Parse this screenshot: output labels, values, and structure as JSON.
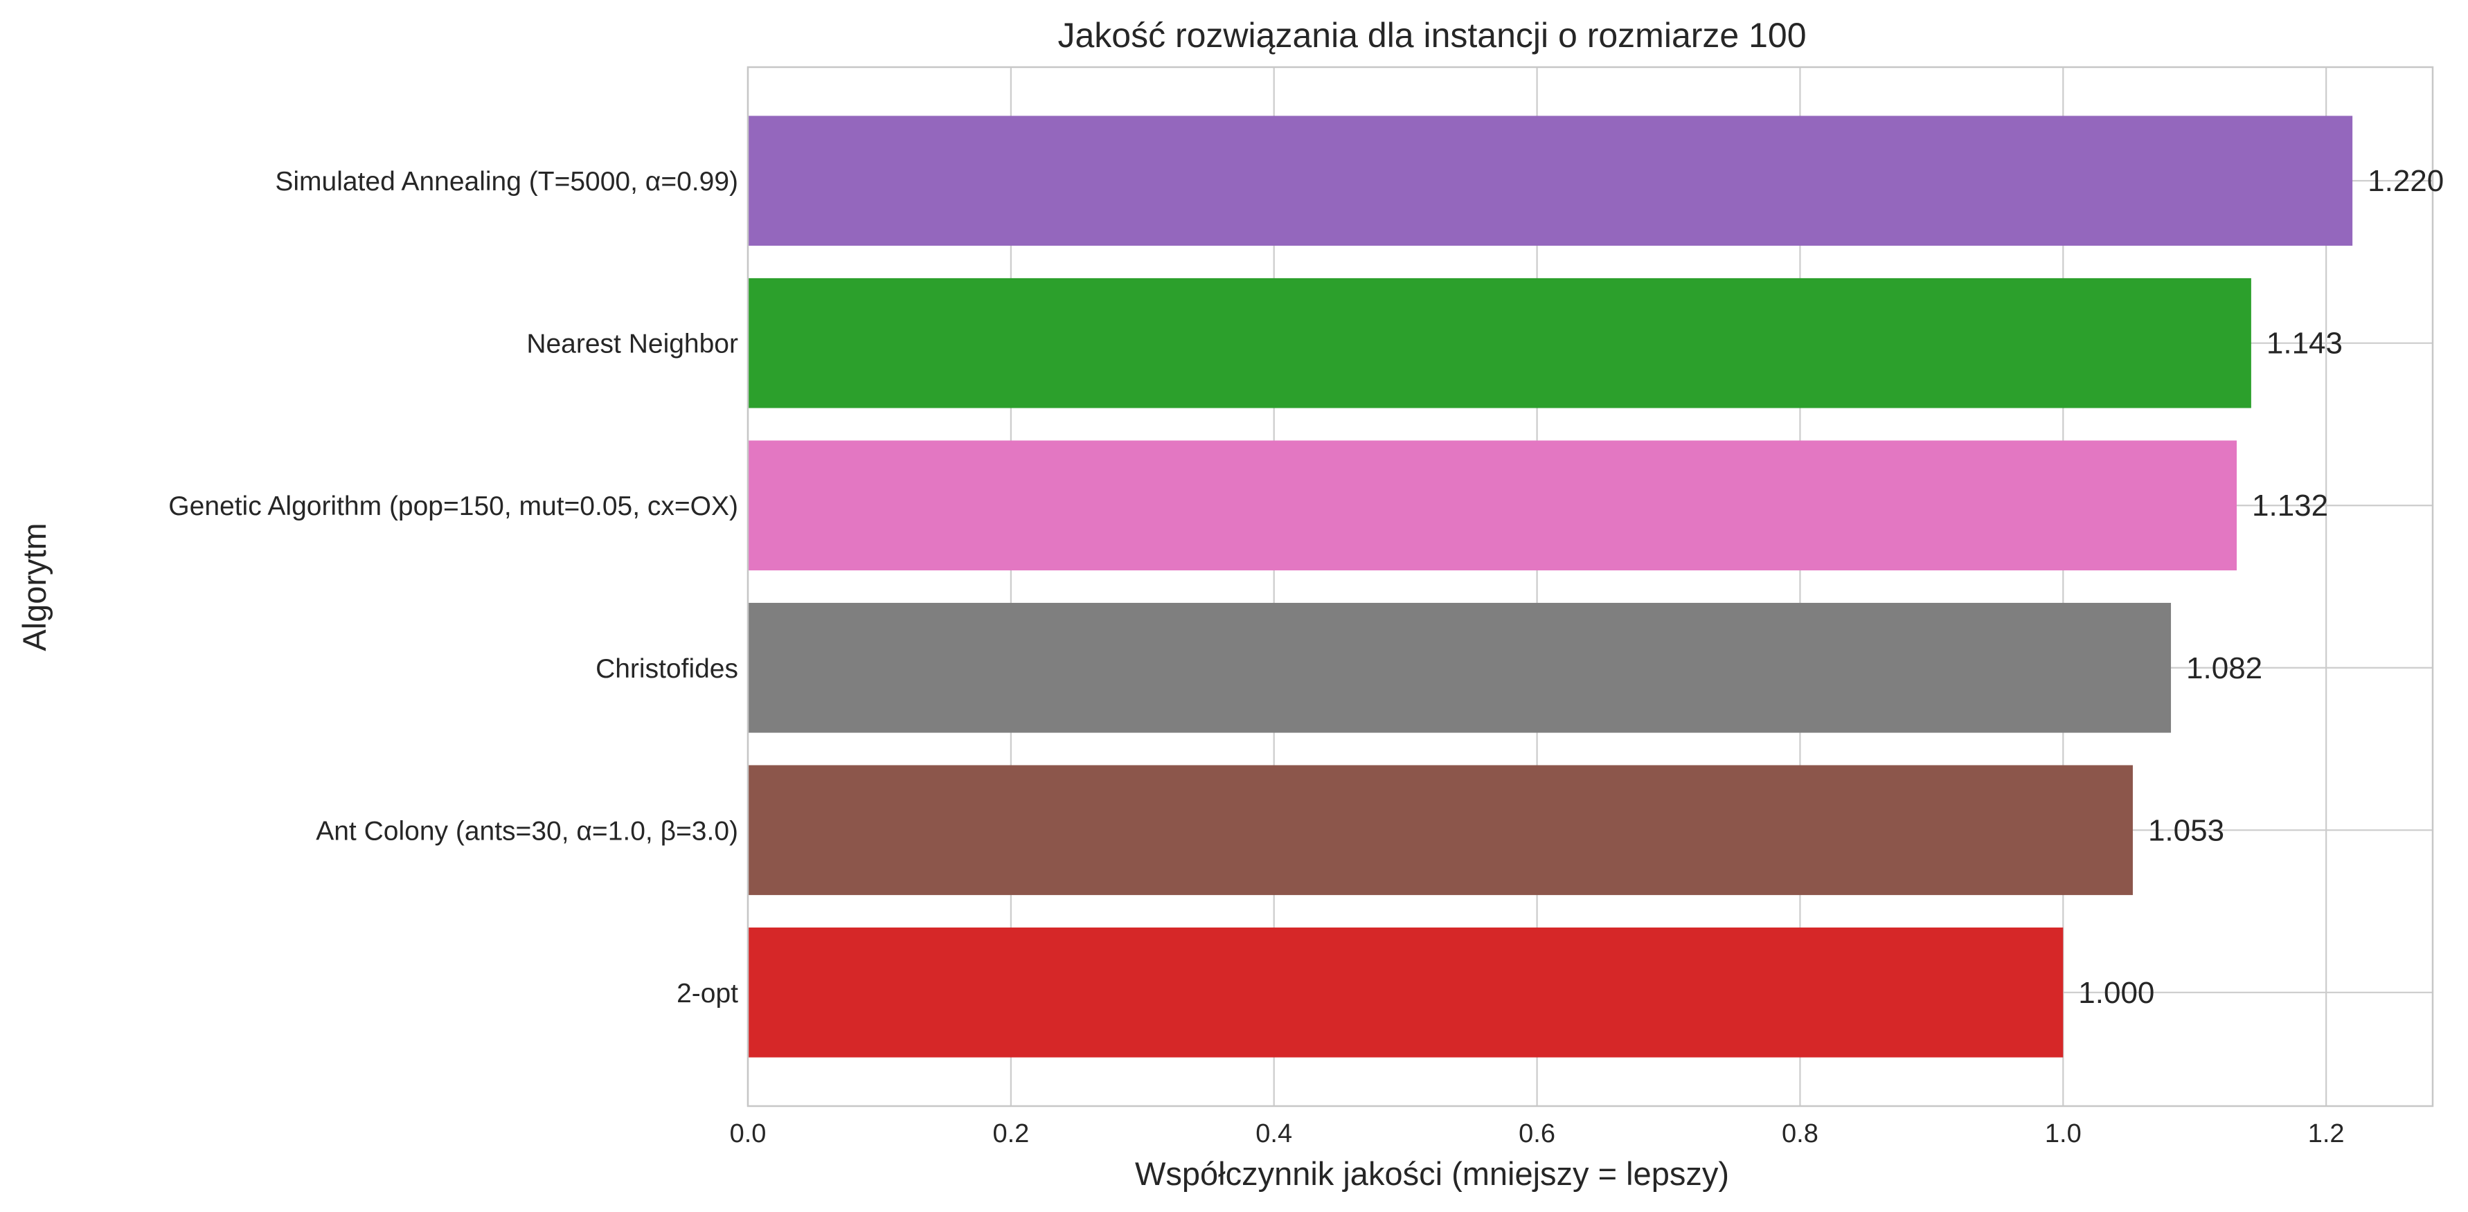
{
  "chart_data": {
    "type": "bar",
    "orientation": "horizontal",
    "title": "Jakość rozwiązania dla instancji o rozmiarze 100",
    "xlabel": "Współczynnik jakości (mniejszy = lepszy)",
    "ylabel": "Algorytm",
    "xlim": [
      0,
      1.281
    ],
    "xticks": [
      0.0,
      0.2,
      0.4,
      0.6,
      0.8,
      1.0,
      1.2
    ],
    "xtick_labels": [
      "0.0",
      "0.2",
      "0.4",
      "0.6",
      "0.8",
      "1.0",
      "1.2"
    ],
    "grid": true,
    "categories": [
      "Simulated Annealing (T=5000, α=0.99)",
      "Nearest Neighbor",
      "Genetic Algorithm (pop=150, mut=0.05, cx=OX)",
      "Christofides",
      "Ant Colony (ants=30, α=1.0, β=3.0)",
      "2-opt"
    ],
    "values": [
      1.22,
      1.143,
      1.132,
      1.082,
      1.053,
      1.0
    ],
    "value_labels": [
      "1.220",
      "1.143",
      "1.132",
      "1.082",
      "1.053",
      "1.000"
    ],
    "colors": [
      "#9467bd",
      "#2ca02c",
      "#e377c2",
      "#7f7f7f",
      "#8c564b",
      "#d62728"
    ]
  }
}
